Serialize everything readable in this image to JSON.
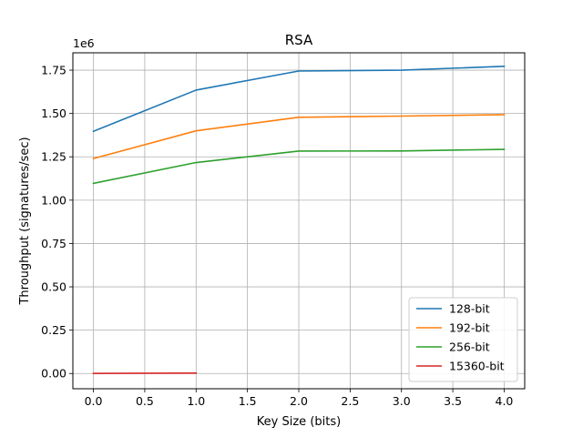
{
  "chart_data": {
    "type": "line",
    "title": "RSA",
    "xlabel": "Key Size (bits)",
    "ylabel": "Throughput (signatures/sec)",
    "y_offset_text": "1e6",
    "xlim": [
      -0.2,
      4.2
    ],
    "ylim": [
      -0.088,
      1.85
    ],
    "x_ticks": [
      0,
      0.5,
      1,
      1.5,
      2,
      2.5,
      3,
      3.5,
      4
    ],
    "x_tick_labels": [
      "0.0",
      "0.5",
      "1.0",
      "1.5",
      "2.0",
      "2.5",
      "3.0",
      "3.5",
      "4.0"
    ],
    "y_ticks": [
      0,
      0.25,
      0.5,
      0.75,
      1.0,
      1.25,
      1.5,
      1.75
    ],
    "y_tick_labels": [
      "0.00",
      "0.25",
      "0.50",
      "0.75",
      "1.00",
      "1.25",
      "1.50",
      "1.75"
    ],
    "grid": true,
    "legend_position": "lower-right",
    "series": [
      {
        "name": "128-bit",
        "color": "#1f77b4",
        "x": [
          0,
          1,
          2,
          3,
          4
        ],
        "values": [
          1.397,
          1.635,
          1.745,
          1.75,
          1.772
        ]
      },
      {
        "name": "192-bit",
        "color": "#ff7f0e",
        "x": [
          0,
          1,
          2,
          3,
          4
        ],
        "values": [
          1.24,
          1.4,
          1.478,
          1.485,
          1.493
        ]
      },
      {
        "name": "256-bit",
        "color": "#2ca02c",
        "x": [
          0,
          1,
          2,
          3,
          4
        ],
        "values": [
          1.097,
          1.217,
          1.283,
          1.284,
          1.293
        ]
      },
      {
        "name": "15360-bit",
        "color": "#d62728",
        "x": [
          0,
          1
        ],
        "values": [
          0.0003,
          0.0025
        ]
      }
    ]
  }
}
